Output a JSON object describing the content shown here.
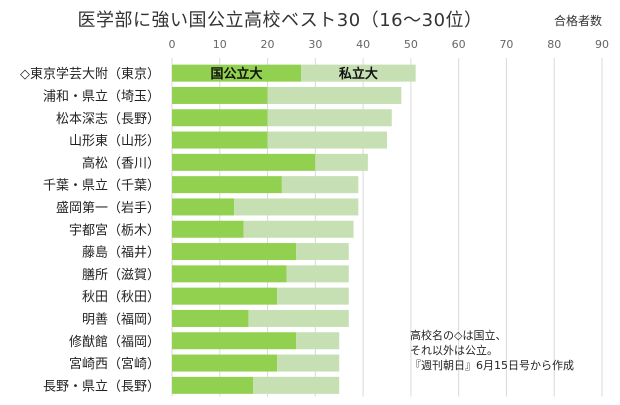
{
  "chart_data": {
    "type": "bar",
    "orientation": "horizontal",
    "stacked": true,
    "title": "医学部に強い国公立高校ベスト30（16〜30位）",
    "unit_label": "合格者数",
    "categories": [
      "◇東京学芸大附（東京）",
      "浦和・県立（埼玉）",
      "松本深志（長野）",
      "山形東（山形）",
      "高松（香川）",
      "千葉・県立（千葉）",
      "盛岡第一（岩手）",
      "宇都宮（栃木）",
      "藤島（福井）",
      "膳所（滋賀）",
      "秋田（秋田）",
      "明善（福岡）",
      "修猷館（福岡）",
      "宮崎西（宮崎）",
      "長野・県立（長野）"
    ],
    "series": [
      {
        "name": "国公立大",
        "color": "#92d050",
        "values": [
          27,
          20,
          20,
          20,
          30,
          23,
          13,
          15,
          26,
          24,
          22,
          16,
          26,
          22,
          17
        ]
      },
      {
        "name": "私立大",
        "color": "#c6e0b4",
        "values": [
          24,
          28,
          26,
          25,
          11,
          16,
          26,
          23,
          11,
          13,
          15,
          21,
          9,
          13,
          18
        ]
      }
    ],
    "xlim": [
      0,
      90
    ],
    "xticks": [
      0,
      10,
      20,
      30,
      40,
      50,
      60,
      70,
      80,
      90
    ],
    "grid": true,
    "legend": "inside first bar"
  },
  "note": {
    "line1": "高校名の◇は国立、",
    "line2": "それ以外は公立。",
    "line3": "『週刊朝日』6月15日号から作成"
  }
}
